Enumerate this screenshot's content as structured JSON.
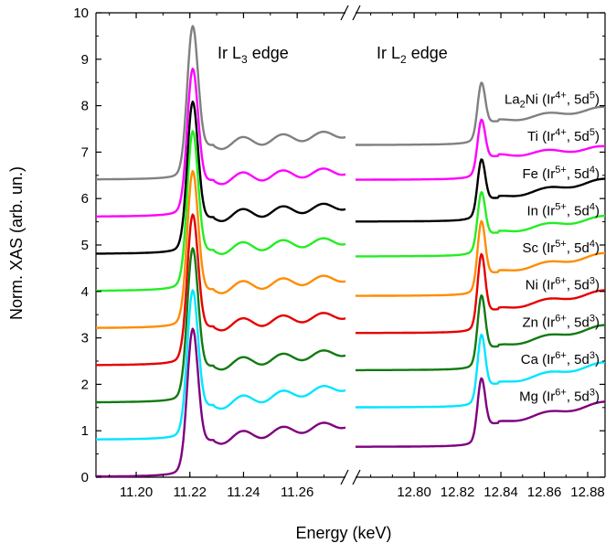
{
  "chart_data": {
    "type": "line",
    "xlabel": "Energy (keV)",
    "ylabel": "Norm. XAS (arb. un.)",
    "ylim": [
      0,
      10
    ],
    "yticks": [
      "0",
      "1",
      "2",
      "3",
      "4",
      "5",
      "6",
      "7",
      "8",
      "9",
      "10"
    ],
    "broken_x_axis": true,
    "x_segments": [
      {
        "xlim": [
          11.185,
          11.278
        ],
        "ticks": [
          "11.20",
          "11.22",
          "11.24",
          "11.26"
        ],
        "edge_label": "Ir L",
        "edge_sub": "3",
        "edge_suffix": " edge",
        "peak": 11.221
      },
      {
        "xlim": [
          12.773,
          12.888
        ],
        "ticks": [
          "12.80",
          "12.82",
          "12.84",
          "12.86",
          "12.88"
        ],
        "edge_label": "Ir L",
        "edge_sub": "2",
        "edge_suffix": " edge",
        "peak": 12.831
      }
    ],
    "series": [
      {
        "name": "Mg",
        "color": "#7f007f",
        "offset": 0.0,
        "peak_l3": 3.25,
        "post_l3": 0.85,
        "end_l3": 1.15,
        "peak_l2": 2.1,
        "post_l2": 1.2,
        "end_l2": 1.6,
        "label": {
          "el": "Mg",
          "ox": "6+",
          "d": "3"
        }
      },
      {
        "name": "Ca",
        "color": "#00e5ff",
        "offset": 0.8,
        "peak_l3": 4.1,
        "post_l3": 1.6,
        "end_l3": 1.95,
        "peak_l2": 3.05,
        "post_l2": 2.05,
        "end_l2": 2.45,
        "label": {
          "el": "Ca",
          "ox": "6+",
          "d": "3"
        }
      },
      {
        "name": "Zn",
        "color": "#117a11",
        "offset": 1.6,
        "peak_l3": 5.0,
        "post_l3": 2.45,
        "end_l3": 2.7,
        "peak_l2": 3.9,
        "post_l2": 2.85,
        "end_l2": 3.25,
        "label": {
          "el": "Zn",
          "ox": "6+",
          "d": "3"
        }
      },
      {
        "name": "Ni",
        "color": "#e50000",
        "offset": 2.4,
        "peak_l3": 5.7,
        "post_l3": 3.3,
        "end_l3": 3.5,
        "peak_l2": 4.8,
        "post_l2": 3.65,
        "end_l2": 4.0,
        "label": {
          "el": "Ni",
          "ox": "6+",
          "d": "3"
        }
      },
      {
        "name": "Sc",
        "color": "#ff8c00",
        "offset": 3.2,
        "peak_l3": 6.65,
        "post_l3": 4.1,
        "end_l3": 4.3,
        "peak_l2": 5.5,
        "post_l2": 4.45,
        "end_l2": 4.8,
        "label": {
          "el": "Sc",
          "ox": "5+",
          "d": "4"
        }
      },
      {
        "name": "In",
        "color": "#22ee22",
        "offset": 4.0,
        "peak_l3": 7.5,
        "post_l3": 4.95,
        "end_l3": 5.1,
        "peak_l2": 6.1,
        "post_l2": 5.3,
        "end_l2": 5.6,
        "label": {
          "el": "In",
          "ox": "5+",
          "d": "4"
        }
      },
      {
        "name": "Fe",
        "color": "#000000",
        "offset": 4.8,
        "peak_l3": 8.15,
        "post_l3": 5.65,
        "end_l3": 5.85,
        "peak_l2": 6.8,
        "post_l2": 6.05,
        "end_l2": 6.4,
        "label": {
          "el": "Fe",
          "ox": "5+",
          "d": "4"
        }
      },
      {
        "name": "Ti",
        "color": "#ff00ff",
        "offset": 5.6,
        "peak_l3": 8.85,
        "post_l3": 6.45,
        "end_l3": 6.6,
        "peak_l2": 7.65,
        "post_l2": 6.95,
        "end_l2": 7.1,
        "label": {
          "el": "Ti",
          "ox": "4+",
          "d": "5"
        }
      },
      {
        "name": "La2Ni",
        "color": "#808080",
        "offset": 6.4,
        "peak_l3": 9.8,
        "post_l3": 7.2,
        "end_l3": 7.4,
        "peak_l2": 8.45,
        "post_l2": 7.7,
        "end_l2": 7.95,
        "label": {
          "el": "La",
          "el_sub": "2",
          "el_rest": "Ni",
          "ox": "4+",
          "d": "5"
        }
      }
    ]
  }
}
